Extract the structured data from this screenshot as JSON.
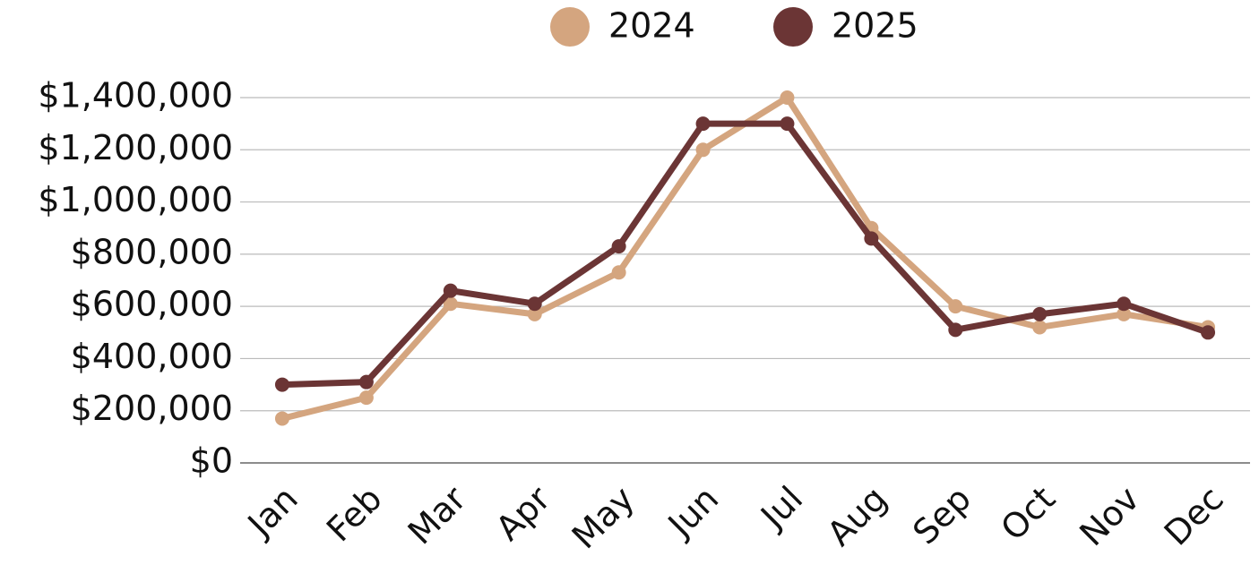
{
  "chart_data": {
    "type": "line",
    "categories": [
      "Jan",
      "Feb",
      "Mar",
      "Apr",
      "May",
      "Jun",
      "Jul",
      "Aug",
      "Sep",
      "Oct",
      "Nov",
      "Dec"
    ],
    "series": [
      {
        "name": "2024",
        "color": "#d4a57f",
        "values": [
          170000,
          250000,
          610000,
          570000,
          730000,
          1200000,
          1400000,
          900000,
          600000,
          520000,
          570000,
          520000
        ]
      },
      {
        "name": "2025",
        "color": "#6b3535",
        "values": [
          300000,
          310000,
          660000,
          610000,
          830000,
          1300000,
          1300000,
          860000,
          510000,
          570000,
          610000,
          500000
        ]
      }
    ],
    "ylim": [
      0,
      1400000
    ],
    "yticks": [
      {
        "value": 0,
        "label": "$0"
      },
      {
        "value": 200000,
        "label": "$200,000"
      },
      {
        "value": 400000,
        "label": "$400,000"
      },
      {
        "value": 600000,
        "label": "$600,000"
      },
      {
        "value": 800000,
        "label": "$800,000"
      },
      {
        "value": 1000000,
        "label": "$1,000,000"
      },
      {
        "value": 1200000,
        "label": "$1,200,000"
      },
      {
        "value": 1400000,
        "label": "$1,400,000"
      }
    ],
    "grid": true,
    "legend": "top"
  }
}
